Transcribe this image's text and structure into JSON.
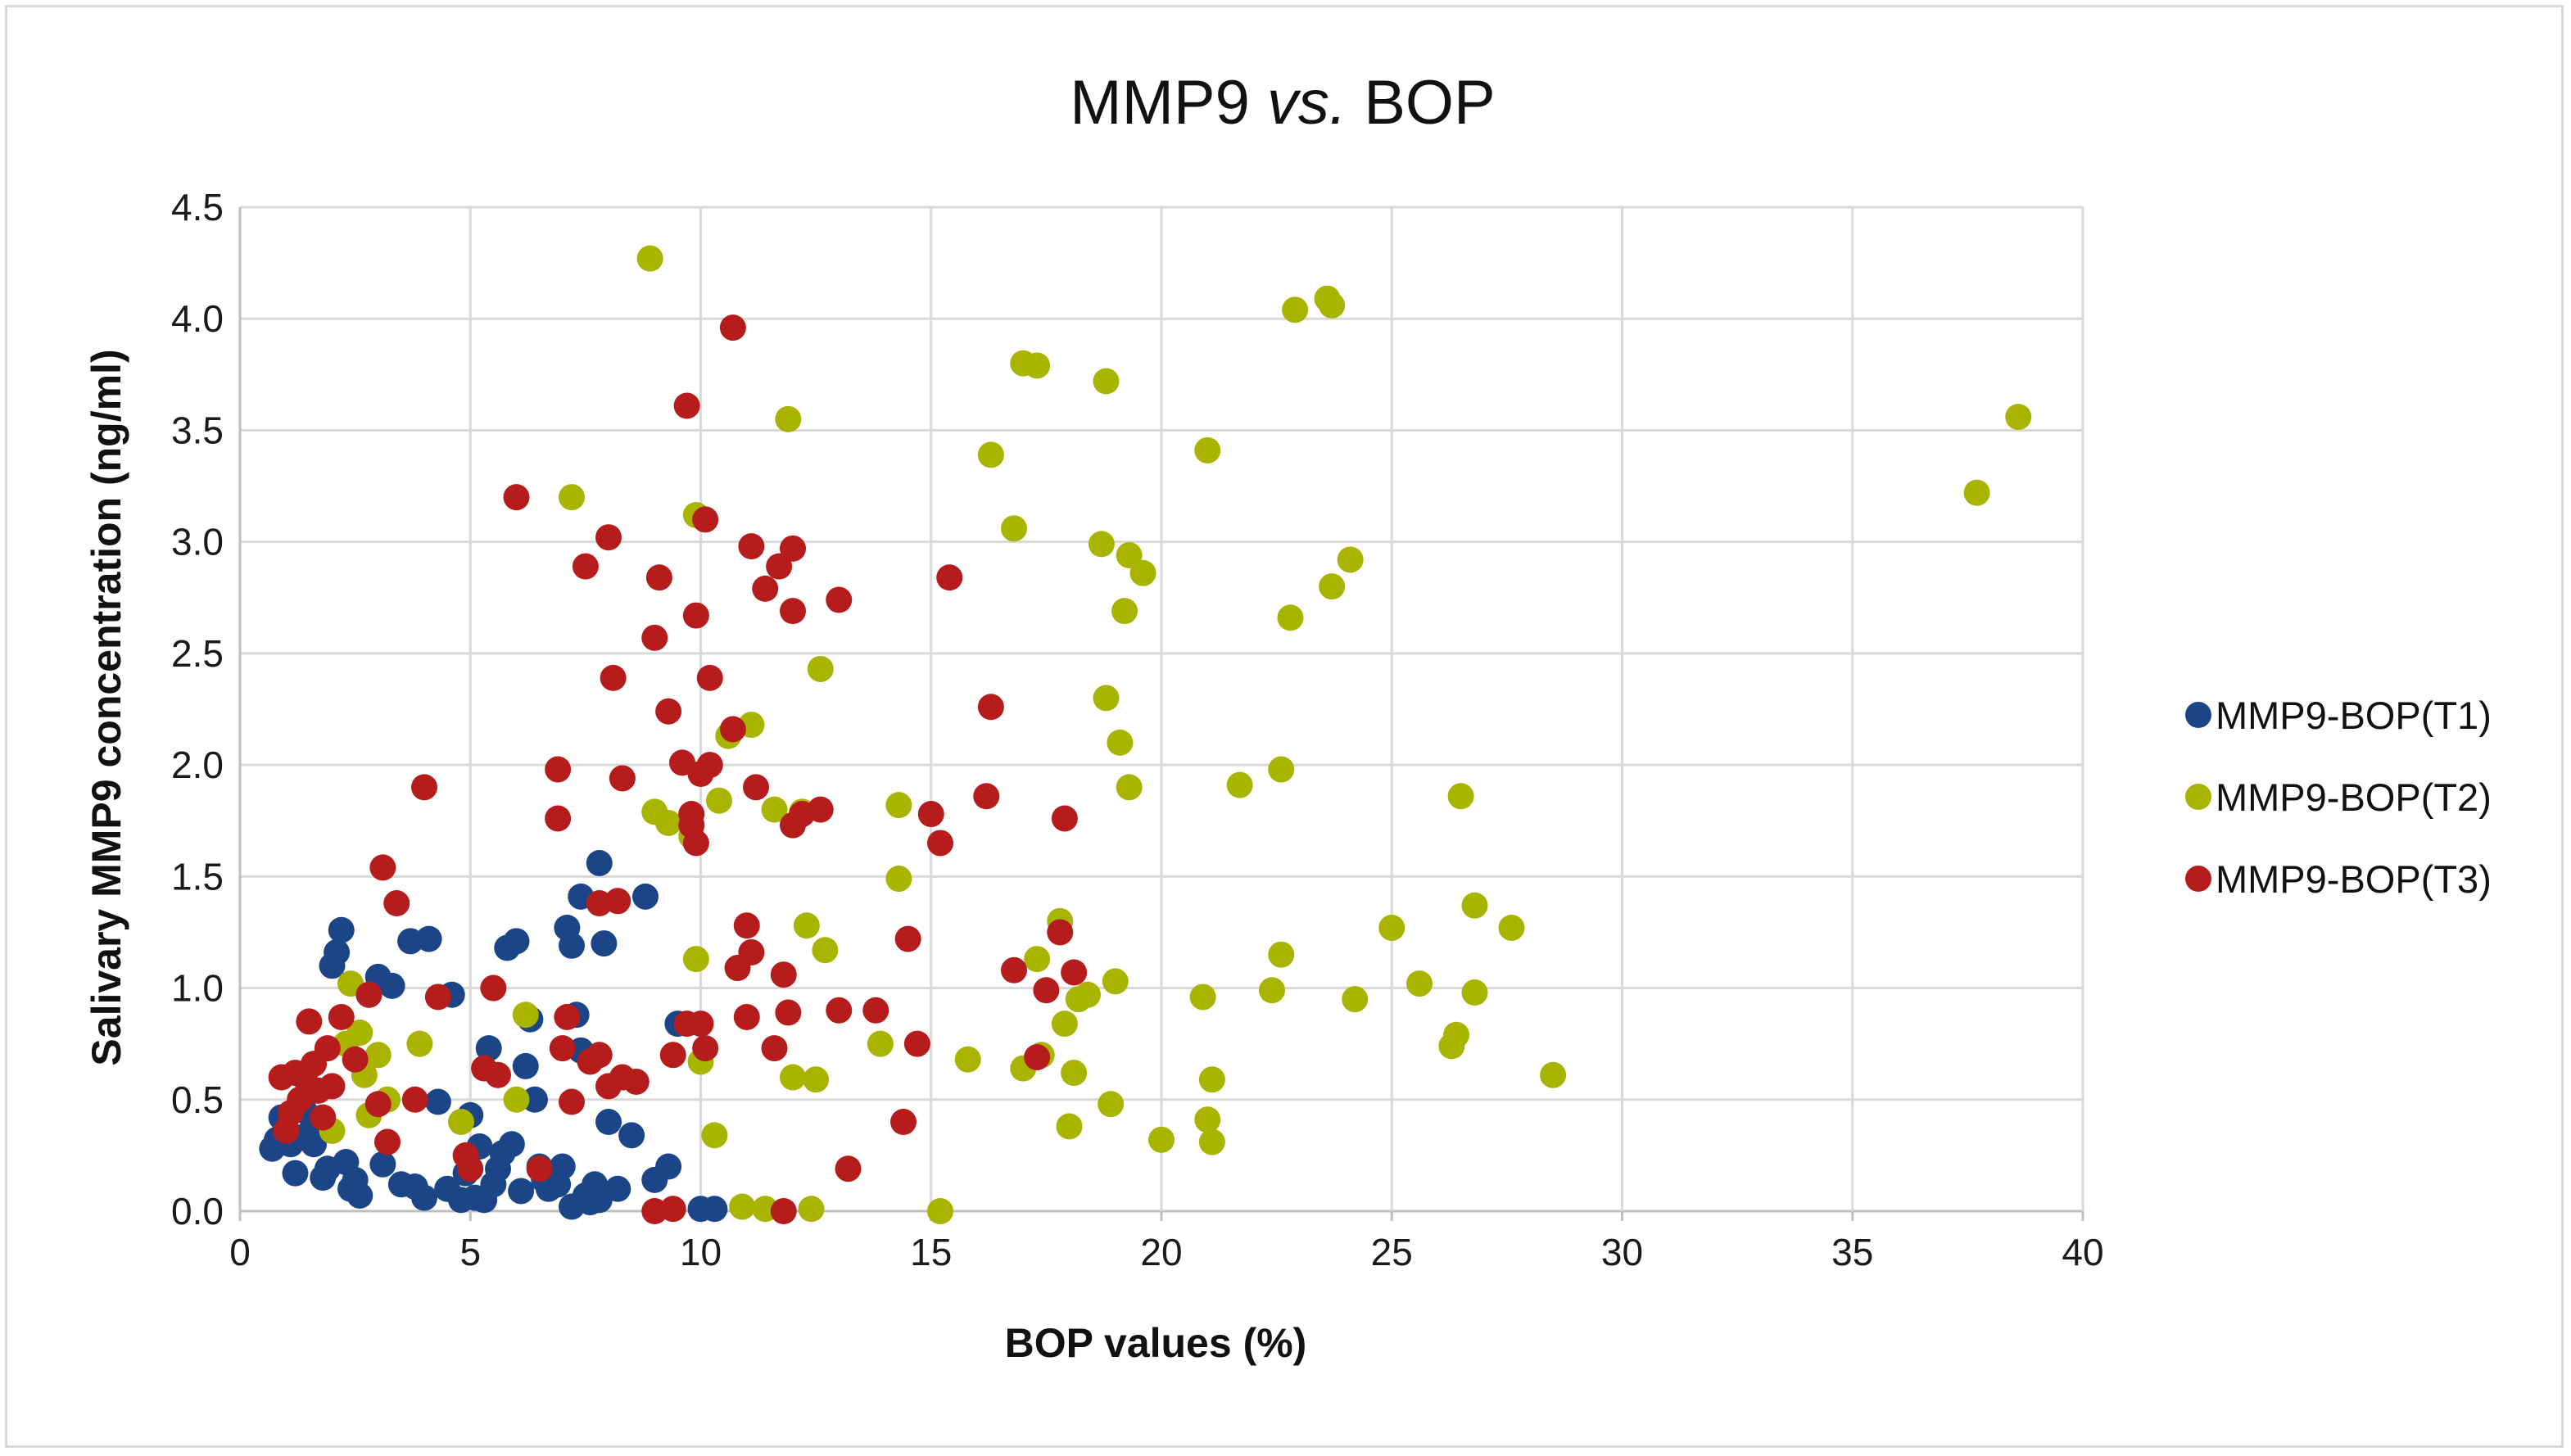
{
  "chart_data": {
    "type": "scatter",
    "title": "MMP9",
    "title_italic": "vs.",
    "title_end": "BOP",
    "xlabel": "BOP values (%)",
    "ylabel": "Salivary MMP9 concentration (ng/ml)",
    "xlim": [
      0,
      40
    ],
    "ylim": [
      0,
      4.5
    ],
    "xticks": [
      "0",
      "5",
      "10",
      "15",
      "20",
      "25",
      "30",
      "35",
      "40"
    ],
    "yticks": [
      "0.0",
      "0.5",
      "1.0",
      "1.5",
      "2.0",
      "2.5",
      "3.0",
      "3.5",
      "4.0",
      "4.5"
    ],
    "grid": true,
    "legend_position": "right",
    "series": [
      {
        "name": "MMP9-BOP(T1)",
        "color": "#1c4587",
        "points": [
          [
            0.7,
            0.28
          ],
          [
            0.8,
            0.32
          ],
          [
            0.9,
            0.42
          ],
          [
            1.0,
            0.37
          ],
          [
            1.1,
            0.3
          ],
          [
            1.2,
            0.17
          ],
          [
            1.4,
            0.45
          ],
          [
            1.5,
            0.35
          ],
          [
            1.6,
            0.3
          ],
          [
            1.8,
            0.15
          ],
          [
            1.9,
            0.19
          ],
          [
            2.0,
            1.1
          ],
          [
            2.1,
            1.16
          ],
          [
            2.2,
            1.26
          ],
          [
            2.3,
            0.22
          ],
          [
            2.4,
            0.1
          ],
          [
            2.5,
            0.14
          ],
          [
            2.6,
            0.07
          ],
          [
            2.8,
            0.97
          ],
          [
            3.0,
            1.05
          ],
          [
            3.1,
            0.21
          ],
          [
            3.3,
            1.01
          ],
          [
            3.5,
            0.12
          ],
          [
            3.7,
            1.21
          ],
          [
            3.8,
            0.11
          ],
          [
            4.0,
            0.06
          ],
          [
            4.1,
            1.22
          ],
          [
            4.3,
            0.49
          ],
          [
            4.5,
            0.1
          ],
          [
            4.6,
            0.97
          ],
          [
            4.8,
            0.05
          ],
          [
            4.9,
            0.17
          ],
          [
            5.0,
            0.43
          ],
          [
            5.1,
            0.06
          ],
          [
            5.2,
            0.29
          ],
          [
            5.3,
            0.05
          ],
          [
            5.4,
            0.73
          ],
          [
            5.5,
            0.12
          ],
          [
            5.6,
            0.19
          ],
          [
            5.7,
            0.26
          ],
          [
            5.8,
            1.18
          ],
          [
            5.9,
            0.3
          ],
          [
            6.0,
            1.21
          ],
          [
            6.1,
            0.09
          ],
          [
            6.2,
            0.65
          ],
          [
            6.3,
            0.86
          ],
          [
            6.4,
            0.5
          ],
          [
            6.5,
            0.2
          ],
          [
            6.6,
            0.14
          ],
          [
            6.7,
            0.1
          ],
          [
            6.8,
            0.15
          ],
          [
            6.9,
            0.12
          ],
          [
            7.0,
            0.2
          ],
          [
            7.1,
            1.27
          ],
          [
            7.2,
            1.19
          ],
          [
            7.3,
            0.88
          ],
          [
            7.4,
            1.41
          ],
          [
            7.5,
            0.07
          ],
          [
            7.6,
            0.04
          ],
          [
            7.7,
            0.12
          ],
          [
            7.8,
            1.56
          ],
          [
            7.9,
            1.2
          ],
          [
            8.0,
            0.4
          ],
          [
            8.2,
            0.1
          ],
          [
            8.5,
            0.34
          ],
          [
            8.8,
            1.41
          ],
          [
            9.0,
            0.14
          ],
          [
            9.3,
            0.2
          ],
          [
            9.5,
            0.84
          ],
          [
            10.0,
            0.01
          ],
          [
            10.3,
            0.01
          ],
          [
            7.2,
            0.02
          ],
          [
            7.8,
            0.05
          ],
          [
            7.4,
            0.72
          ]
        ]
      },
      {
        "name": "MMP9-BOP(T2)",
        "color": "#a8b400",
        "points": [
          [
            2.0,
            0.36
          ],
          [
            2.3,
            0.75
          ],
          [
            2.4,
            1.02
          ],
          [
            2.6,
            0.8
          ],
          [
            2.7,
            0.61
          ],
          [
            2.8,
            0.43
          ],
          [
            3.0,
            0.7
          ],
          [
            3.2,
            0.5
          ],
          [
            3.9,
            0.75
          ],
          [
            4.8,
            0.4
          ],
          [
            6.0,
            0.5
          ],
          [
            6.2,
            0.88
          ],
          [
            7.2,
            3.2
          ],
          [
            8.9,
            4.27
          ],
          [
            9.0,
            1.79
          ],
          [
            9.3,
            1.74
          ],
          [
            9.8,
            1.68
          ],
          [
            9.9,
            3.12
          ],
          [
            9.9,
            1.13
          ],
          [
            10.0,
            0.67
          ],
          [
            10.3,
            0.34
          ],
          [
            10.4,
            1.84
          ],
          [
            10.6,
            2.13
          ],
          [
            10.9,
            0.02
          ],
          [
            11.1,
            2.18
          ],
          [
            11.4,
            0.01
          ],
          [
            11.6,
            1.8
          ],
          [
            11.9,
            3.55
          ],
          [
            12.0,
            0.6
          ],
          [
            12.2,
            1.79
          ],
          [
            12.3,
            1.28
          ],
          [
            12.5,
            0.59
          ],
          [
            12.6,
            2.43
          ],
          [
            12.7,
            1.17
          ],
          [
            12.4,
            0.01
          ],
          [
            13.9,
            0.75
          ],
          [
            14.3,
            1.82
          ],
          [
            14.3,
            1.49
          ],
          [
            15.2,
            0.0
          ],
          [
            15.8,
            0.68
          ],
          [
            16.3,
            3.39
          ],
          [
            16.8,
            3.06
          ],
          [
            17.0,
            3.8
          ],
          [
            17.0,
            0.64
          ],
          [
            17.3,
            3.79
          ],
          [
            17.3,
            1.13
          ],
          [
            17.4,
            0.7
          ],
          [
            17.8,
            1.3
          ],
          [
            17.9,
            0.84
          ],
          [
            18.0,
            0.38
          ],
          [
            18.1,
            0.62
          ],
          [
            18.2,
            0.95
          ],
          [
            18.4,
            0.97
          ],
          [
            18.7,
            2.99
          ],
          [
            18.8,
            3.72
          ],
          [
            18.8,
            2.3
          ],
          [
            18.9,
            0.48
          ],
          [
            19.0,
            1.03
          ],
          [
            19.1,
            2.1
          ],
          [
            19.2,
            2.69
          ],
          [
            19.3,
            2.94
          ],
          [
            19.3,
            1.9
          ],
          [
            19.6,
            2.86
          ],
          [
            20.0,
            0.32
          ],
          [
            20.9,
            0.96
          ],
          [
            21.0,
            3.41
          ],
          [
            21.0,
            0.41
          ],
          [
            21.1,
            0.31
          ],
          [
            21.1,
            0.59
          ],
          [
            21.7,
            1.91
          ],
          [
            22.4,
            0.99
          ],
          [
            22.6,
            1.98
          ],
          [
            22.6,
            1.15
          ],
          [
            22.8,
            2.66
          ],
          [
            22.9,
            4.04
          ],
          [
            23.6,
            4.09
          ],
          [
            23.7,
            4.06
          ],
          [
            23.7,
            2.8
          ],
          [
            24.1,
            2.92
          ],
          [
            24.2,
            0.95
          ],
          [
            25.0,
            1.27
          ],
          [
            25.6,
            1.02
          ],
          [
            26.3,
            0.74
          ],
          [
            26.4,
            0.79
          ],
          [
            26.5,
            1.86
          ],
          [
            26.8,
            1.37
          ],
          [
            26.8,
            0.98
          ],
          [
            27.6,
            1.27
          ],
          [
            28.5,
            0.61
          ],
          [
            37.7,
            3.22
          ],
          [
            38.6,
            3.56
          ]
        ]
      },
      {
        "name": "MMP9-BOP(T3)",
        "color": "#b71c1c",
        "points": [
          [
            0.9,
            0.6
          ],
          [
            1.0,
            0.36
          ],
          [
            1.1,
            0.44
          ],
          [
            1.2,
            0.62
          ],
          [
            1.3,
            0.5
          ],
          [
            1.4,
            0.6
          ],
          [
            1.5,
            0.85
          ],
          [
            1.6,
            0.66
          ],
          [
            1.7,
            0.54
          ],
          [
            1.8,
            0.42
          ],
          [
            1.9,
            0.73
          ],
          [
            2.0,
            0.56
          ],
          [
            2.2,
            0.87
          ],
          [
            2.5,
            0.68
          ],
          [
            2.8,
            0.97
          ],
          [
            3.1,
            1.54
          ],
          [
            3.0,
            0.48
          ],
          [
            3.2,
            0.31
          ],
          [
            3.4,
            1.38
          ],
          [
            3.8,
            0.5
          ],
          [
            4.0,
            1.9
          ],
          [
            4.3,
            0.96
          ],
          [
            4.9,
            0.25
          ],
          [
            5.0,
            0.19
          ],
          [
            5.3,
            0.64
          ],
          [
            5.5,
            1.0
          ],
          [
            5.6,
            0.61
          ],
          [
            6.0,
            3.2
          ],
          [
            6.5,
            0.19
          ],
          [
            6.9,
            1.98
          ],
          [
            6.9,
            1.76
          ],
          [
            7.0,
            0.73
          ],
          [
            7.1,
            0.87
          ],
          [
            7.2,
            0.49
          ],
          [
            7.5,
            2.89
          ],
          [
            7.6,
            0.67
          ],
          [
            7.8,
            0.7
          ],
          [
            7.8,
            1.38
          ],
          [
            8.0,
            0.56
          ],
          [
            8.0,
            3.02
          ],
          [
            8.1,
            2.39
          ],
          [
            8.2,
            1.39
          ],
          [
            8.3,
            1.94
          ],
          [
            8.3,
            0.6
          ],
          [
            8.6,
            0.58
          ],
          [
            9.0,
            2.57
          ],
          [
            9.0,
            0.0
          ],
          [
            9.1,
            2.84
          ],
          [
            9.3,
            2.24
          ],
          [
            9.4,
            0.01
          ],
          [
            9.4,
            0.7
          ],
          [
            9.6,
            2.01
          ],
          [
            9.7,
            0.84
          ],
          [
            9.7,
            3.61
          ],
          [
            9.8,
            1.78
          ],
          [
            9.8,
            1.73
          ],
          [
            9.9,
            1.65
          ],
          [
            9.9,
            2.67
          ],
          [
            10.0,
            1.96
          ],
          [
            10.0,
            0.84
          ],
          [
            10.1,
            3.1
          ],
          [
            10.1,
            0.73
          ],
          [
            10.2,
            2.0
          ],
          [
            10.2,
            2.39
          ],
          [
            10.7,
            2.16
          ],
          [
            10.7,
            3.96
          ],
          [
            10.8,
            1.09
          ],
          [
            11.0,
            1.28
          ],
          [
            11.0,
            0.87
          ],
          [
            11.1,
            1.16
          ],
          [
            11.1,
            2.98
          ],
          [
            11.2,
            1.9
          ],
          [
            11.4,
            2.79
          ],
          [
            11.6,
            0.73
          ],
          [
            11.7,
            2.89
          ],
          [
            11.8,
            0.0
          ],
          [
            11.8,
            1.06
          ],
          [
            11.9,
            0.89
          ],
          [
            12.0,
            1.73
          ],
          [
            12.0,
            2.69
          ],
          [
            12.0,
            2.97
          ],
          [
            12.2,
            1.78
          ],
          [
            12.6,
            1.8
          ],
          [
            13.0,
            2.74
          ],
          [
            13.0,
            0.9
          ],
          [
            13.2,
            0.19
          ],
          [
            13.8,
            0.9
          ],
          [
            14.4,
            0.4
          ],
          [
            14.5,
            1.22
          ],
          [
            14.7,
            0.75
          ],
          [
            15.0,
            1.78
          ],
          [
            15.2,
            1.65
          ],
          [
            15.4,
            2.84
          ],
          [
            16.2,
            1.86
          ],
          [
            16.3,
            2.26
          ],
          [
            16.8,
            1.08
          ],
          [
            17.3,
            0.69
          ],
          [
            17.5,
            0.99
          ],
          [
            17.8,
            1.25
          ],
          [
            17.9,
            1.76
          ],
          [
            18.1,
            1.07
          ]
        ]
      }
    ]
  }
}
